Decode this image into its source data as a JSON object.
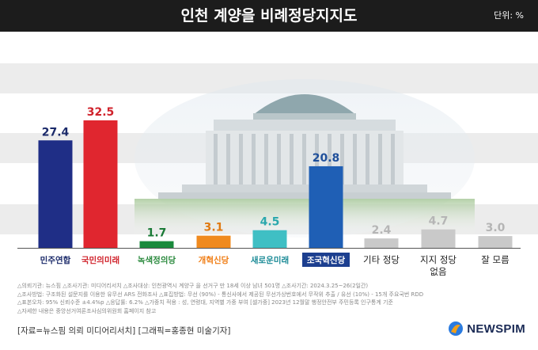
{
  "header": {
    "title": "인천 계양을 비례정당지지도",
    "unit": "단위: %"
  },
  "chart_data": {
    "type": "bar",
    "title": "인천 계양을 비례정당지지도",
    "unit": "단위: %",
    "categories": [
      "민주연합",
      "국민의미래",
      "녹색정의당",
      "개혁신당",
      "새로운미래",
      "조국혁신당",
      "기타 정당",
      "지지 정당 없음",
      "잘 모름"
    ],
    "values": [
      27.4,
      32.5,
      1.7,
      3.1,
      4.5,
      20.8,
      2.4,
      4.7,
      3.0
    ],
    "value_labels": [
      "27.4",
      "32.5",
      "1.7",
      "3.1",
      "4.5",
      "20.8",
      "2.4",
      "4.7",
      "3.0"
    ],
    "bar_colors": [
      "#1f2e86",
      "#e0262f",
      "#1a8a3c",
      "#f08a1e",
      "#3fbfc4",
      "#1f5fb5",
      "#c9c9c9",
      "#c9c9c9",
      "#c9c9c9"
    ],
    "label_colors": [
      "#1b2a6a",
      "#d0232c",
      "#2b8a3e",
      "#f07c12",
      "#1a8a96",
      "#ffffff",
      "#222222",
      "#222222",
      "#222222"
    ],
    "value_colors": [
      "#1b2a6a",
      "#d0232c",
      "#1a7a36",
      "#e07a12",
      "#2aa8ad",
      "#1f4f9a",
      "#b5b5b5",
      "#b5b5b5",
      "#b5b5b5"
    ],
    "ylim": [
      0,
      35
    ],
    "grid": false,
    "legend": "none"
  },
  "footnotes": [
    "△의뢰기관: 뉴스핌 △조사기관: 미디어리서치 △조사대상: 인천광역시 계양구 을 선거구 만 18세 이상 남녀 501명 △조사기간: 2024.3.25~26(2일간)",
    "△조사방법: 구조화된 설문지를 이용한 유무선 ARS 전화조사 △표집방법: 무선 (90%) - 통신사에서 제공된 무선가상번호에서 무작위 추출 / 유선 (10%) - 15개 주요국번 RDD",
    "△표본오차: 95% 신뢰수준 ±4.4%p △응답률: 6.2% △가중치 적용 : 성, 연령대, 지역별 가중 부여 [셀가중] 2023년 12월말 행정안전부 주민등록 인구통계 기준",
    "△자세한 내용은 중앙선거여론조사심의위원회 홈페이지 참고"
  ],
  "credit": "[자료=뉴스핌 의뢰 미디어리서치] [그래픽=홍종현 미술기자]",
  "logo": {
    "text": "NEWSPIM",
    "color": "#1a2a55",
    "icon_colors": [
      "#2a7be0",
      "#f2a01a"
    ]
  }
}
